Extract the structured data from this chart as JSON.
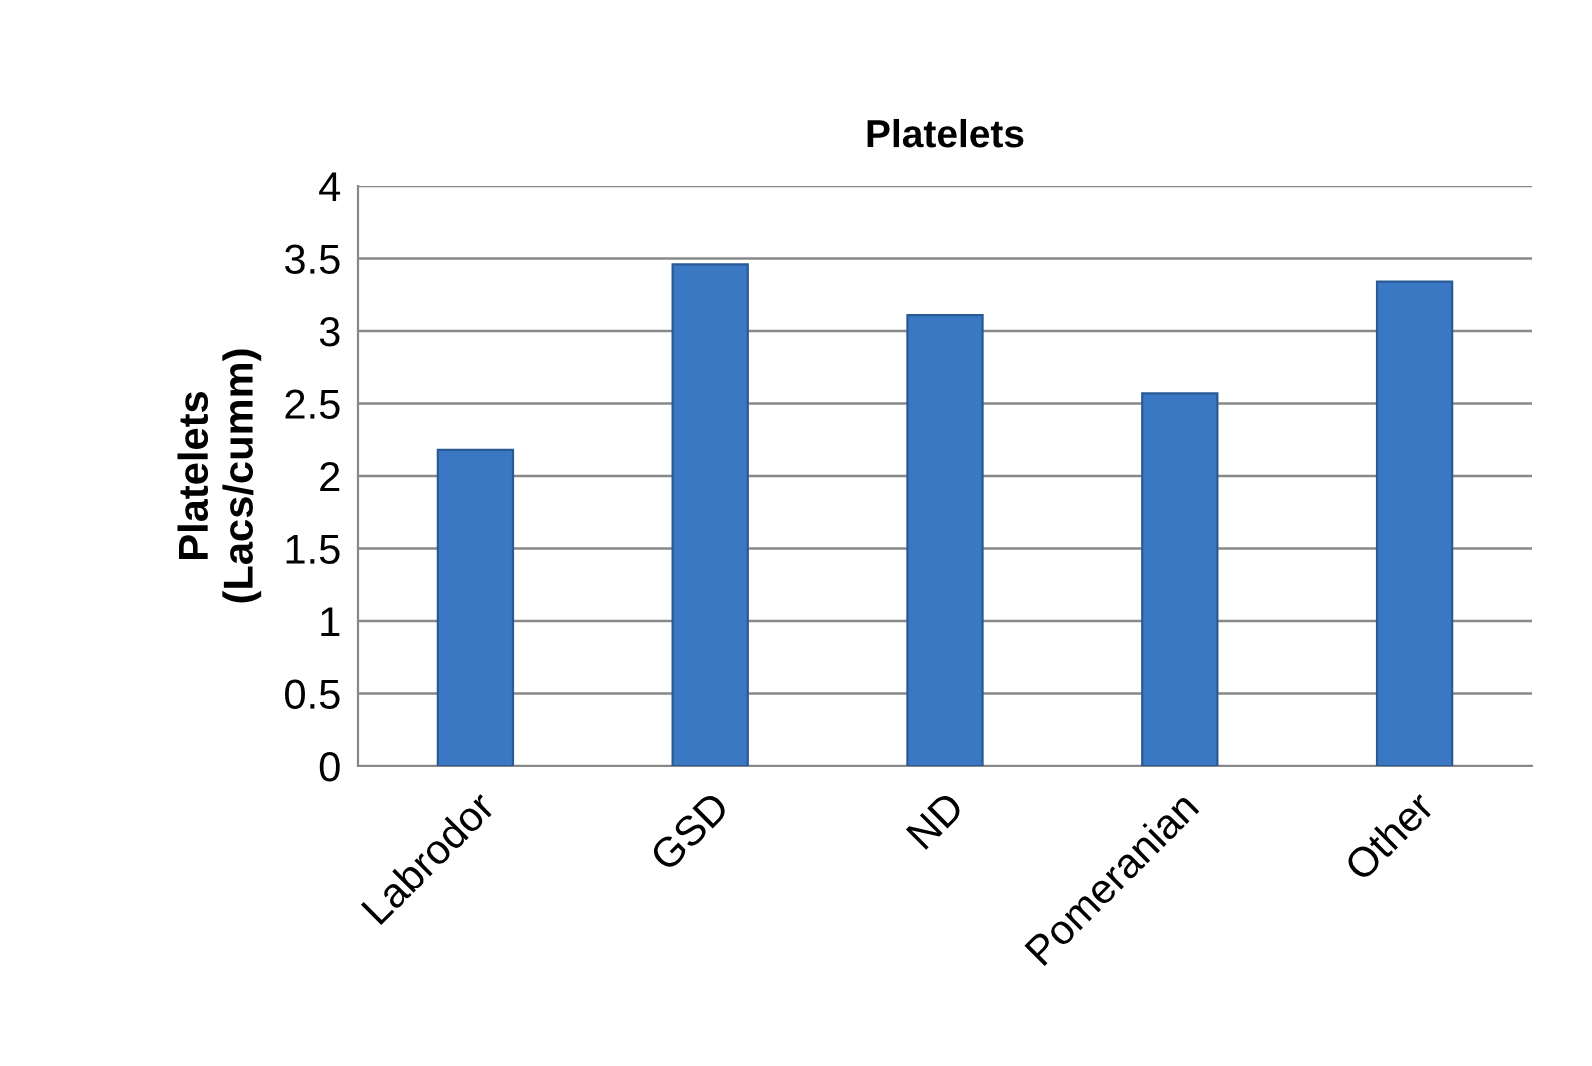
{
  "chart_data": {
    "type": "bar",
    "title": "Platelets",
    "ylabel": "Platelets\n(Lacs/cumm)",
    "categories": [
      "Labrodor",
      "GSD",
      "ND",
      "Pomeranian",
      "Other"
    ],
    "values": [
      2.18,
      3.46,
      3.11,
      2.57,
      3.34
    ],
    "color": "#3a78c3",
    "ylim": [
      0,
      4
    ],
    "yticks": [
      0,
      0.5,
      1,
      1.5,
      2,
      2.5,
      3,
      3.5,
      4
    ],
    "grid": "y",
    "legend": false
  }
}
